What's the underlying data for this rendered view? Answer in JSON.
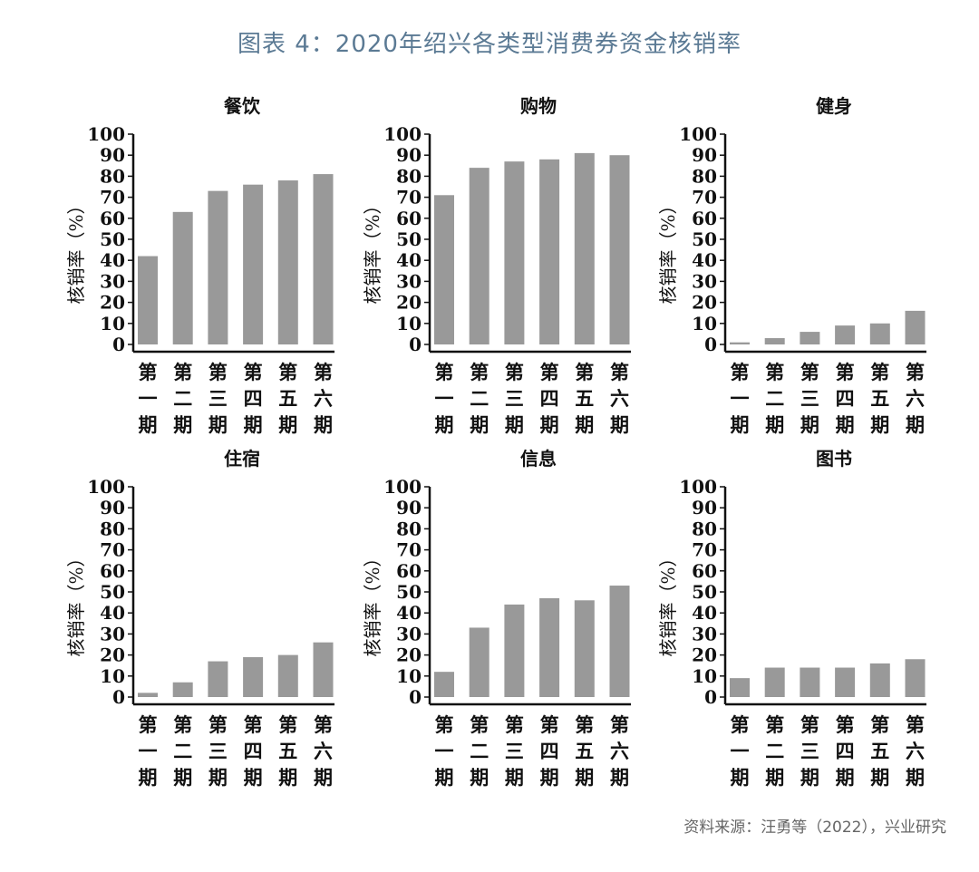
{
  "figure_title": "图表 4：2020年绍兴各类型消费券资金核销率",
  "source": "资料来源：汪勇等（2022），兴业研究",
  "bar_color": "#999999",
  "chart_data": [
    {
      "type": "bar",
      "title": "餐饮",
      "ylabel": "核销率（%）",
      "categories": [
        "第一期",
        "第二期",
        "第三期",
        "第四期",
        "第五期",
        "第六期"
      ],
      "values": [
        42,
        63,
        73,
        76,
        78,
        81
      ],
      "ylim": [
        0,
        100
      ],
      "yticks": [
        0,
        10,
        20,
        30,
        40,
        50,
        60,
        70,
        80,
        90,
        100
      ],
      "grid": false
    },
    {
      "type": "bar",
      "title": "购物",
      "ylabel": "核销率（%）",
      "categories": [
        "第一期",
        "第二期",
        "第三期",
        "第四期",
        "第五期",
        "第六期"
      ],
      "values": [
        71,
        84,
        87,
        88,
        91,
        90
      ],
      "ylim": [
        0,
        100
      ],
      "yticks": [
        0,
        10,
        20,
        30,
        40,
        50,
        60,
        70,
        80,
        90,
        100
      ],
      "grid": false
    },
    {
      "type": "bar",
      "title": "健身",
      "ylabel": "核销率（%）",
      "categories": [
        "第一期",
        "第二期",
        "第三期",
        "第四期",
        "第五期",
        "第六期"
      ],
      "values": [
        1,
        3,
        6,
        9,
        10,
        16
      ],
      "ylim": [
        0,
        100
      ],
      "yticks": [
        0,
        10,
        20,
        30,
        40,
        50,
        60,
        70,
        80,
        90,
        100
      ],
      "grid": false
    },
    {
      "type": "bar",
      "title": "住宿",
      "ylabel": "核销率（%）",
      "categories": [
        "第一期",
        "第二期",
        "第三期",
        "第四期",
        "第五期",
        "第六期"
      ],
      "values": [
        2,
        7,
        17,
        19,
        20,
        26
      ],
      "ylim": [
        0,
        100
      ],
      "yticks": [
        0,
        10,
        20,
        30,
        40,
        50,
        60,
        70,
        80,
        90,
        100
      ],
      "grid": false
    },
    {
      "type": "bar",
      "title": "信息",
      "ylabel": "核销率（%）",
      "categories": [
        "第一期",
        "第二期",
        "第三期",
        "第四期",
        "第五期",
        "第六期"
      ],
      "values": [
        12,
        33,
        44,
        47,
        46,
        53
      ],
      "ylim": [
        0,
        100
      ],
      "yticks": [
        0,
        10,
        20,
        30,
        40,
        50,
        60,
        70,
        80,
        90,
        100
      ],
      "grid": false
    },
    {
      "type": "bar",
      "title": "图书",
      "ylabel": "核销率（%）",
      "categories": [
        "第一期",
        "第二期",
        "第三期",
        "第四期",
        "第五期",
        "第六期"
      ],
      "values": [
        9,
        14,
        14,
        14,
        16,
        18
      ],
      "ylim": [
        0,
        100
      ],
      "yticks": [
        0,
        10,
        20,
        30,
        40,
        50,
        60,
        70,
        80,
        90,
        100
      ],
      "grid": false
    }
  ]
}
